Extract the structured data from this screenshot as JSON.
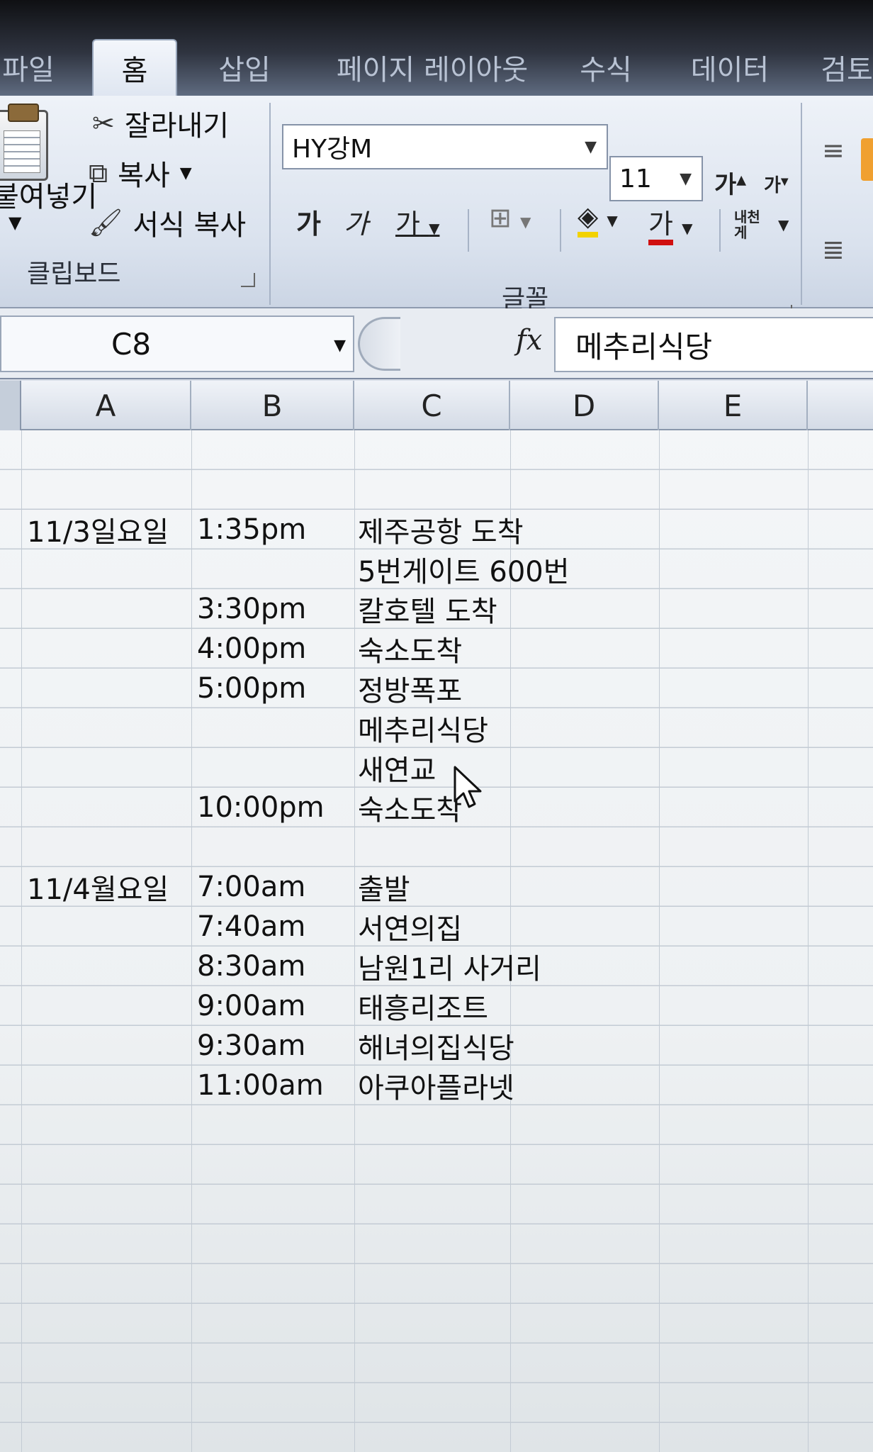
{
  "tabs": [
    {
      "label": "파일",
      "active": false
    },
    {
      "label": "홈",
      "active": true
    },
    {
      "label": "삽입",
      "active": false
    },
    {
      "label": "페이지 레이아웃",
      "active": false
    },
    {
      "label": "수식",
      "active": false
    },
    {
      "label": "데이터",
      "active": false
    },
    {
      "label": "검토",
      "active": false
    }
  ],
  "clipboard": {
    "paste_label": "붙여넣기",
    "cut_label": "잘라내기",
    "copy_label": "복사",
    "format_painter_label": "서식 복사",
    "group_label": "클립보드"
  },
  "font": {
    "font_name": "HY강M",
    "font_size": "11",
    "grow_label": "가",
    "shrink_label": "가",
    "bold_label": "가",
    "italic_label": "가",
    "underline_label": "가",
    "font_color_label": "가",
    "phonetic_label": "내천 게",
    "group_label": "글꼴"
  },
  "formula_bar": {
    "name_box": "C8",
    "fx_label": "fx",
    "value": "메추리식당"
  },
  "columns": [
    "A",
    "B",
    "C",
    "D",
    "E"
  ],
  "rows": [
    {
      "a": "",
      "b": "",
      "c": ""
    },
    {
      "a": "",
      "b": "",
      "c": ""
    },
    {
      "a": "11/3일요일",
      "b": "1:35pm",
      "c": "제주공항 도착"
    },
    {
      "a": "",
      "b": "",
      "c": "5번게이트 600번"
    },
    {
      "a": "",
      "b": "3:30pm",
      "c": "칼호텔 도착"
    },
    {
      "a": "",
      "b": "4:00pm",
      "c": "숙소도착"
    },
    {
      "a": "",
      "b": "5:00pm",
      "c": "정방폭포"
    },
    {
      "a": "",
      "b": "",
      "c": "메추리식당"
    },
    {
      "a": "",
      "b": "",
      "c": "새연교"
    },
    {
      "a": "",
      "b": "10:00pm",
      "c": "숙소도착"
    },
    {
      "a": "",
      "b": "",
      "c": ""
    },
    {
      "a": "11/4월요일",
      "b": "7:00am",
      "c": "출발"
    },
    {
      "a": "",
      "b": "7:40am",
      "c": "서연의집"
    },
    {
      "a": "",
      "b": "8:30am",
      "c": "남원1리 사거리"
    },
    {
      "a": "",
      "b": "9:00am",
      "c": "태흥리조트"
    },
    {
      "a": "",
      "b": "9:30am",
      "c": "해녀의집식당"
    },
    {
      "a": "",
      "b": "11:00am",
      "c": "아쿠아플라넷"
    }
  ],
  "colors": {
    "ribbon_bg": "#dae2ee",
    "fill_color": "#f2d200",
    "font_color": "#d01010"
  }
}
